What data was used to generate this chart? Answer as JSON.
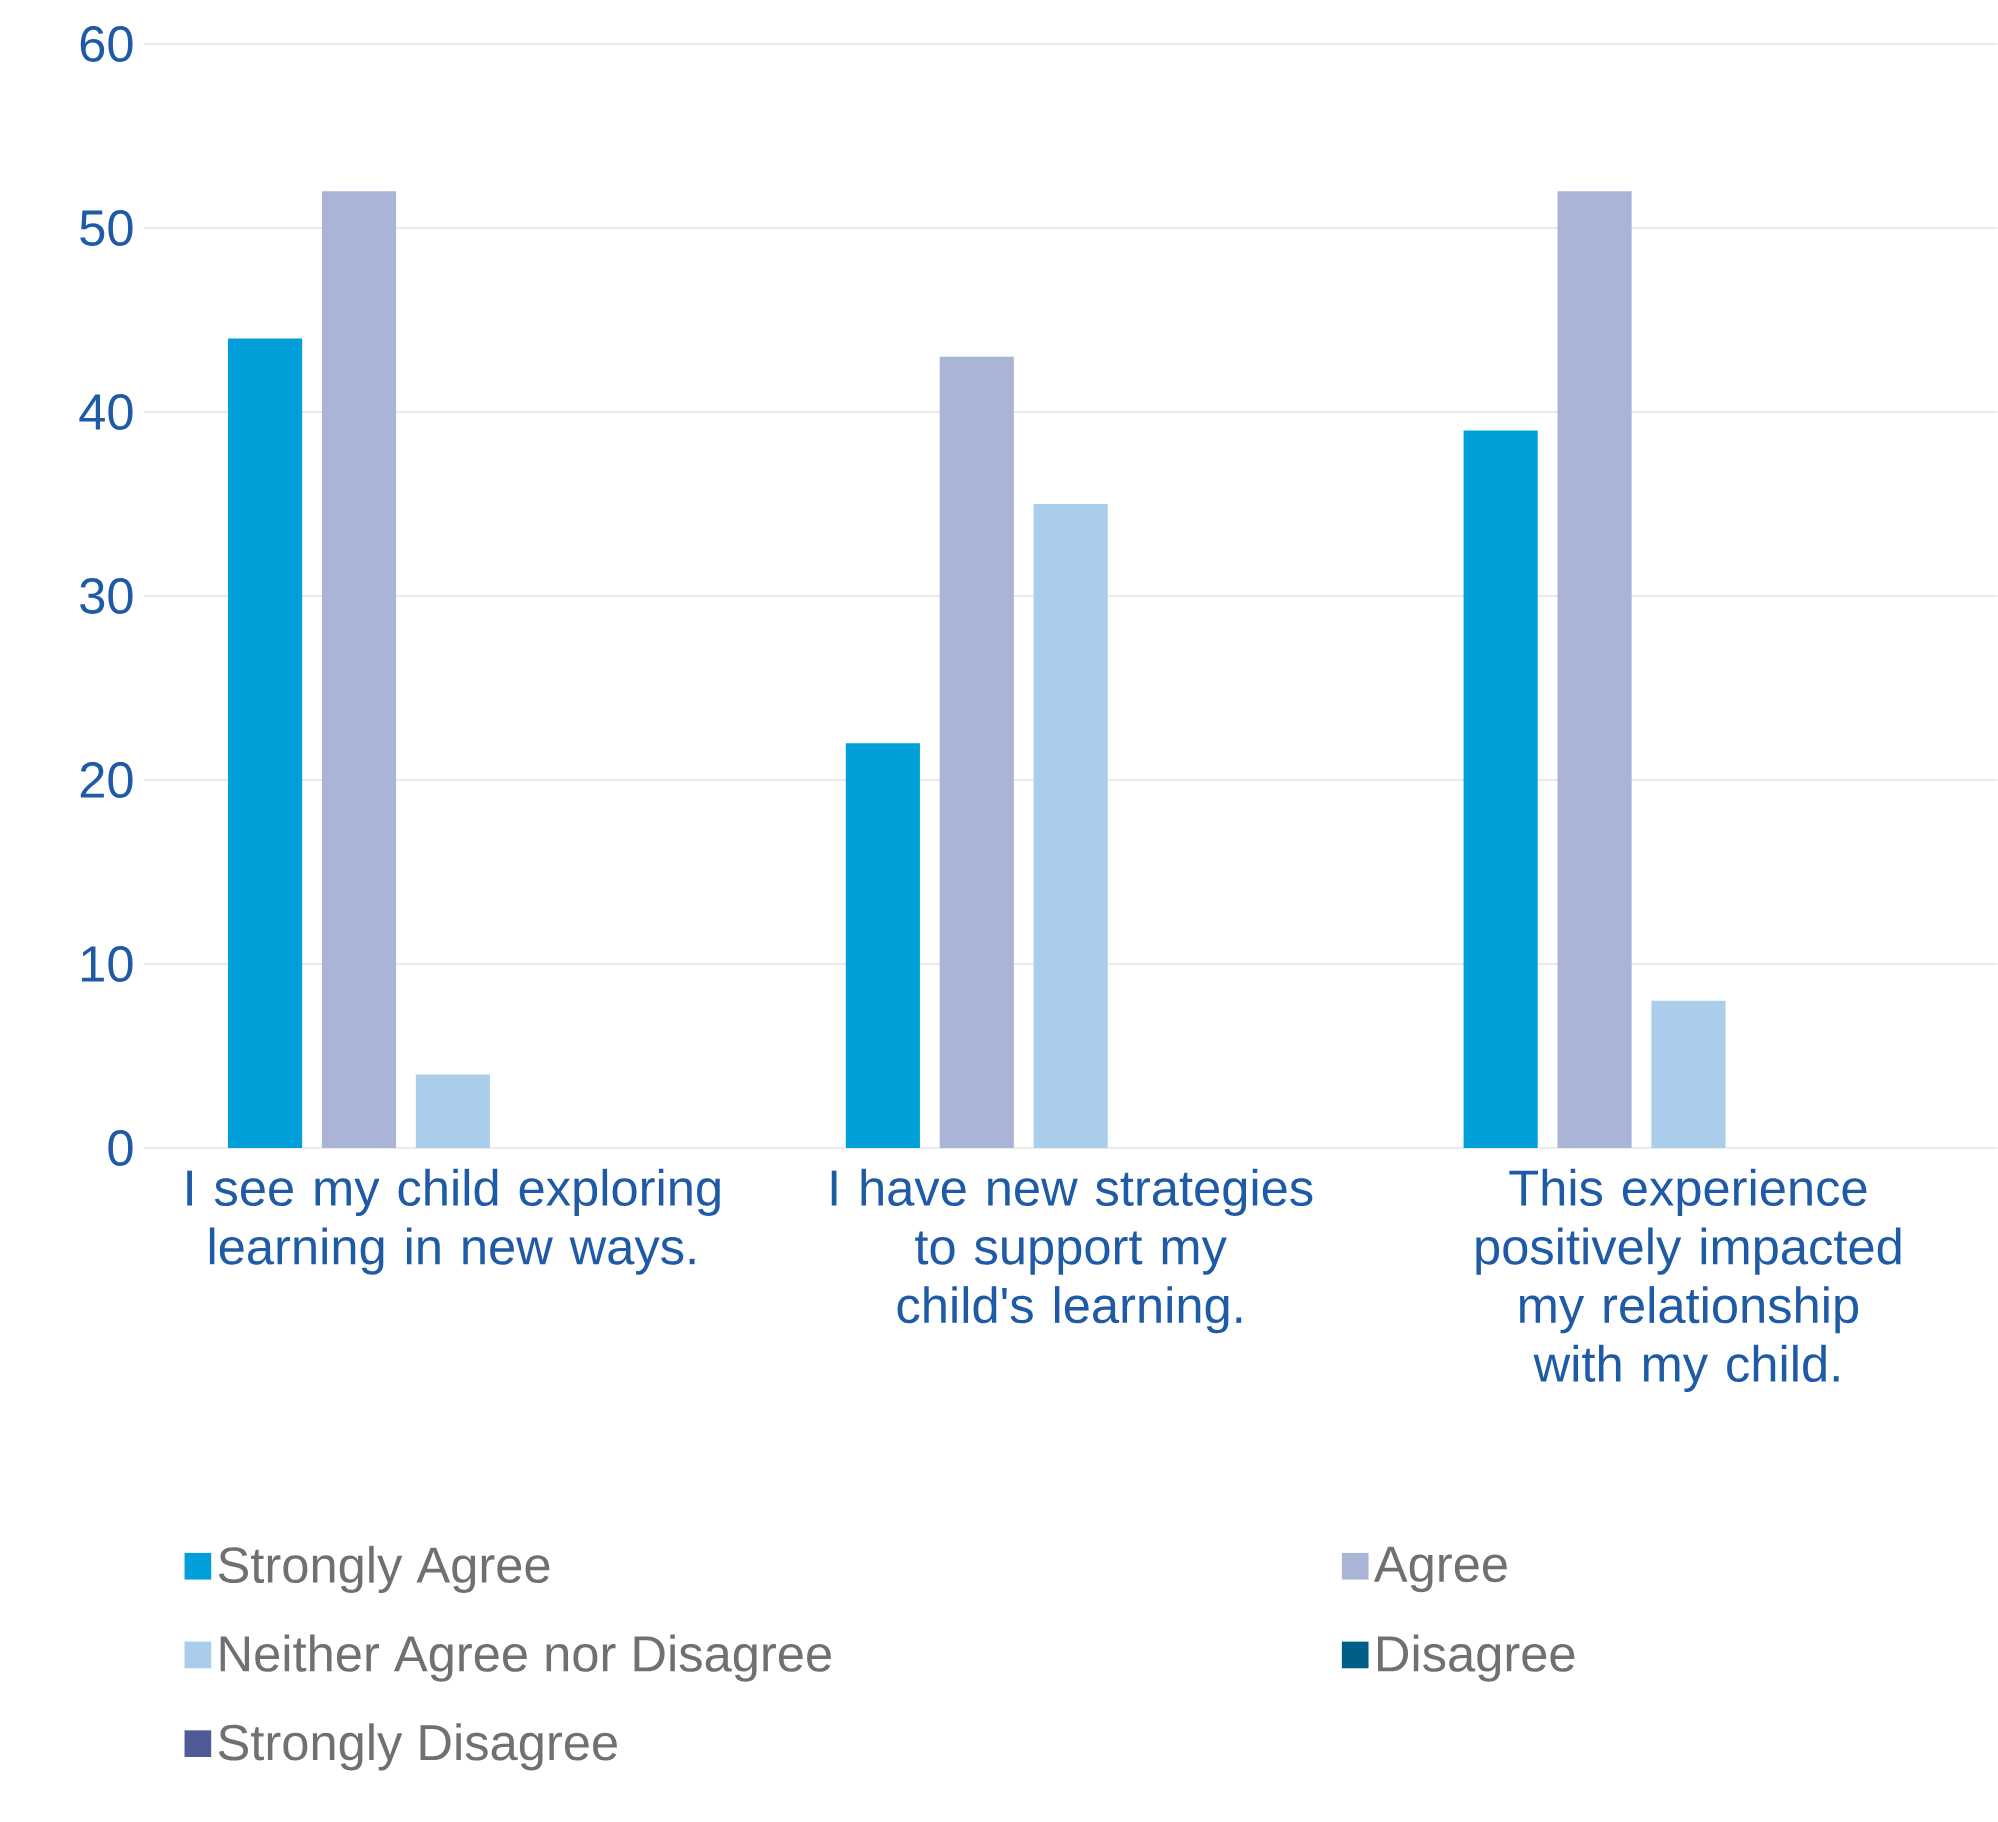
{
  "chart_data": {
    "type": "bar",
    "categories": [
      "I see my child exploring learning in new ways.",
      "I have new strategies to support my child's learning.",
      "This experience positively impacted my relationship with my child."
    ],
    "series": [
      {
        "name": "Strongly Agree",
        "color": "#009fd9",
        "values": [
          44,
          22,
          39
        ]
      },
      {
        "name": "Agree",
        "color": "#a9b4d6",
        "values": [
          52,
          43,
          52
        ]
      },
      {
        "name": "Neither Agree nor Disagree",
        "color": "#a9cdea",
        "values": [
          4,
          35,
          8
        ]
      },
      {
        "name": "Disagree",
        "color": "#005f86",
        "values": [
          0,
          0,
          0
        ]
      },
      {
        "name": "Strongly Disagree",
        "color": "#505a96",
        "values": [
          0,
          0,
          0
        ]
      }
    ],
    "ylim": [
      0,
      60
    ],
    "yticks": [
      0,
      10,
      20,
      30,
      40,
      50,
      60
    ],
    "grid": "y",
    "legend": "bottom"
  }
}
